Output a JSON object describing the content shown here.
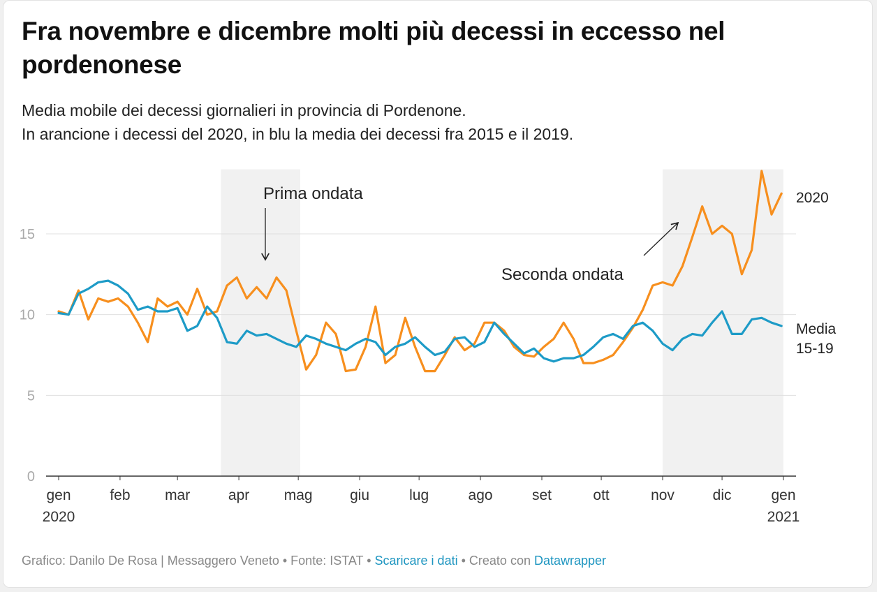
{
  "chart_data": {
    "type": "line",
    "title": "Fra novembre e dicembre molti più decessi in eccesso nel pordenonese",
    "subtitle": [
      "Media mobile dei decessi giornalieri in provincia di Pordenone.",
      "In arancione i decessi del 2020, in blu la media dei decessi fra 2015 e il 2019."
    ],
    "x": [
      0,
      5,
      10,
      15,
      20,
      25,
      30,
      35,
      40,
      45,
      50,
      55,
      60,
      65,
      70,
      75,
      80,
      85,
      90,
      95,
      100,
      105,
      110,
      115,
      120,
      125,
      130,
      135,
      140,
      145,
      150,
      155,
      160,
      165,
      170,
      175,
      180,
      185,
      190,
      195,
      200,
      205,
      210,
      215,
      220,
      225,
      230,
      235,
      240,
      245,
      250,
      255,
      260,
      265,
      270,
      275,
      280,
      285,
      290,
      295,
      300,
      305,
      310,
      315,
      320,
      325,
      330,
      335,
      340,
      345,
      350,
      355,
      360,
      365
    ],
    "xlim": [
      0,
      366
    ],
    "xticks": [
      {
        "value": 0,
        "label": "gen 2020"
      },
      {
        "value": 31,
        "label": "feb"
      },
      {
        "value": 60,
        "label": "mar"
      },
      {
        "value": 91,
        "label": "apr"
      },
      {
        "value": 121,
        "label": "mag"
      },
      {
        "value": 152,
        "label": "giu"
      },
      {
        "value": 182,
        "label": "lug"
      },
      {
        "value": 213,
        "label": "ago"
      },
      {
        "value": 244,
        "label": "set"
      },
      {
        "value": 274,
        "label": "ott"
      },
      {
        "value": 305,
        "label": "nov"
      },
      {
        "value": 335,
        "label": "dic"
      },
      {
        "value": 366,
        "label": "gen 2021"
      }
    ],
    "ylim": [
      0,
      19
    ],
    "yticks": [
      0,
      5,
      10,
      15
    ],
    "grid": true,
    "highlight_ranges": [
      [
        82,
        122
      ],
      [
        305,
        366
      ]
    ],
    "annotations": [
      "Prima ondata",
      "Seconda ondata"
    ],
    "series": [
      {
        "name": "2020",
        "color": "#f78f1e",
        "values": [
          10.2,
          10,
          11.5,
          9.7,
          11,
          10.8,
          11,
          10.5,
          9.5,
          8.3,
          11,
          10.5,
          10.8,
          10,
          11.6,
          10,
          10.2,
          11.8,
          12.3,
          11,
          11.7,
          11,
          12.3,
          11.5,
          9,
          6.6,
          7.5,
          9.5,
          8.8,
          6.5,
          6.6,
          8,
          10.5,
          7,
          7.5,
          9.8,
          8,
          6.5,
          6.5,
          7.5,
          8.6,
          7.8,
          8.2,
          9.5,
          9.5,
          9,
          8,
          7.5,
          7.4,
          8,
          8.5,
          9.5,
          8.5,
          7,
          7,
          7.2,
          7.5,
          8.3,
          9.2,
          10.3,
          11.8,
          12,
          11.8,
          13,
          14.8,
          16.7,
          15,
          15.5,
          15,
          12.5,
          14,
          18.9,
          16.2,
          17.5
        ]
      },
      {
        "name": "Media 15-19",
        "color": "#1d9bc7",
        "values": [
          10.1,
          10,
          11.3,
          11.6,
          12,
          12.1,
          11.8,
          11.3,
          10.3,
          10.5,
          10.2,
          10.2,
          10.4,
          9,
          9.3,
          10.5,
          9.8,
          8.3,
          8.2,
          9,
          8.7,
          8.8,
          8.5,
          8.2,
          8,
          8.7,
          8.5,
          8.2,
          8,
          7.8,
          8.2,
          8.5,
          8.3,
          7.5,
          8,
          8.2,
          8.6,
          8,
          7.5,
          7.7,
          8.5,
          8.6,
          8,
          8.3,
          9.5,
          8.8,
          8.2,
          7.6,
          7.9,
          7.3,
          7.1,
          7.3,
          7.3,
          7.5,
          8,
          8.6,
          8.8,
          8.5,
          9.3,
          9.5,
          9,
          8.2,
          7.8,
          8.5,
          8.8,
          8.7,
          9.5,
          10.2,
          8.8,
          8.8,
          9.7,
          9.8,
          9.5,
          9.3
        ]
      }
    ],
    "footer": [
      {
        "text": "Grafico: Danilo De Rosa | Messaggero Veneto • Fonte: ISTAT •",
        "link": false
      },
      {
        "text": "Scaricare i dati",
        "link": true
      },
      {
        "text": "• Creato con",
        "link": false
      },
      {
        "text": "Datawrapper",
        "link": true
      }
    ]
  }
}
